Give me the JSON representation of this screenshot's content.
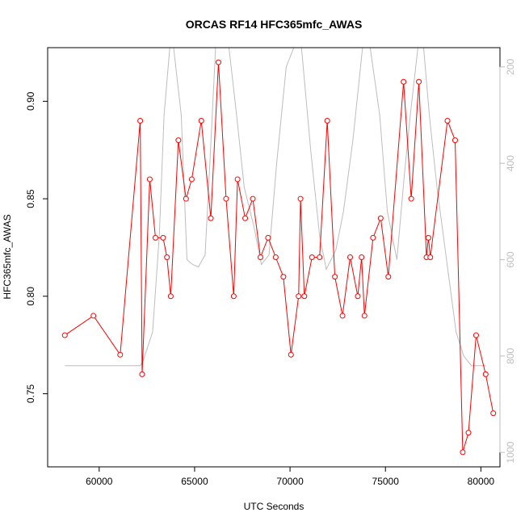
{
  "chart_data": {
    "type": "line",
    "title": "ORCAS RF14 HFC365mfc_AWAS",
    "xlabel": "UTC Seconds",
    "ylabel": "HFC365mfc_AWAS",
    "xlim": [
      57300,
      81000
    ],
    "ylim": [
      0.7125,
      0.9275
    ],
    "x_ticks": [
      60000,
      65000,
      70000,
      75000,
      80000
    ],
    "y_ticks": [
      0.75,
      0.8,
      0.85,
      0.9
    ],
    "y_tick_labels": [
      "0.75",
      "0.80",
      "0.85",
      "0.90"
    ],
    "y2lim": [
      1030,
      160
    ],
    "y2_ticks": [
      200,
      400,
      600,
      800,
      1000
    ],
    "y2_reversed": true,
    "grid": false,
    "series": [
      {
        "color": "#ff0000",
        "axis": "left",
        "style": "line+points",
        "x": [
          58200,
          59700,
          61100,
          62150,
          62250,
          62650,
          62950,
          63350,
          63550,
          63750,
          64150,
          64550,
          64850,
          65350,
          65850,
          66250,
          66650,
          67050,
          67250,
          67650,
          68050,
          68450,
          68850,
          69250,
          69650,
          70050,
          70450,
          70550,
          70750,
          71150,
          71550,
          71950,
          72350,
          72750,
          73150,
          73550,
          73750,
          73900,
          74350,
          74750,
          75150,
          75950,
          76350,
          76750,
          77150,
          77250,
          77350,
          78250,
          78650,
          79050,
          79350,
          79750,
          80250,
          80650
        ],
        "y": [
          0.78,
          0.79,
          0.77,
          0.89,
          0.76,
          0.86,
          0.83,
          0.83,
          0.82,
          0.8,
          0.88,
          0.85,
          0.86,
          0.89,
          0.84,
          0.92,
          0.85,
          0.8,
          0.86,
          0.84,
          0.85,
          0.82,
          0.83,
          0.82,
          0.81,
          0.77,
          0.8,
          0.85,
          0.8,
          0.82,
          0.82,
          0.89,
          0.81,
          0.79,
          0.82,
          0.8,
          0.82,
          0.79,
          0.83,
          0.84,
          0.81,
          0.91,
          0.85,
          0.91,
          0.82,
          0.83,
          0.82,
          0.89,
          0.88,
          0.72,
          0.73,
          0.78,
          0.76,
          0.74
        ]
      },
      {
        "color": "#bdbdbd",
        "axis": "right",
        "style": "line",
        "x": [
          58200,
          62150,
          62300,
          62800,
          63150,
          63400,
          63700,
          63900,
          64300,
          64600,
          64900,
          65200,
          65550,
          65800,
          66100,
          66400,
          66800,
          67200,
          67600,
          68100,
          68500,
          68900,
          69300,
          69800,
          70200,
          70600,
          71100,
          71550,
          71900,
          72400,
          72800,
          73300,
          73800,
          74200,
          74700,
          75100,
          75600,
          76000,
          76300,
          76700,
          77000,
          77300,
          77700,
          78200,
          78700,
          79100,
          79500,
          80250
        ],
        "y": [
          820,
          820,
          810,
          750,
          550,
          300,
          160,
          160,
          300,
          600,
          610,
          615,
          590,
          400,
          160,
          160,
          160,
          300,
          450,
          530,
          610,
          590,
          400,
          200,
          160,
          160,
          380,
          550,
          620,
          580,
          500,
          350,
          160,
          160,
          300,
          500,
          600,
          420,
          300,
          160,
          160,
          300,
          450,
          600,
          750,
          800,
          820,
          820
        ]
      }
    ]
  }
}
